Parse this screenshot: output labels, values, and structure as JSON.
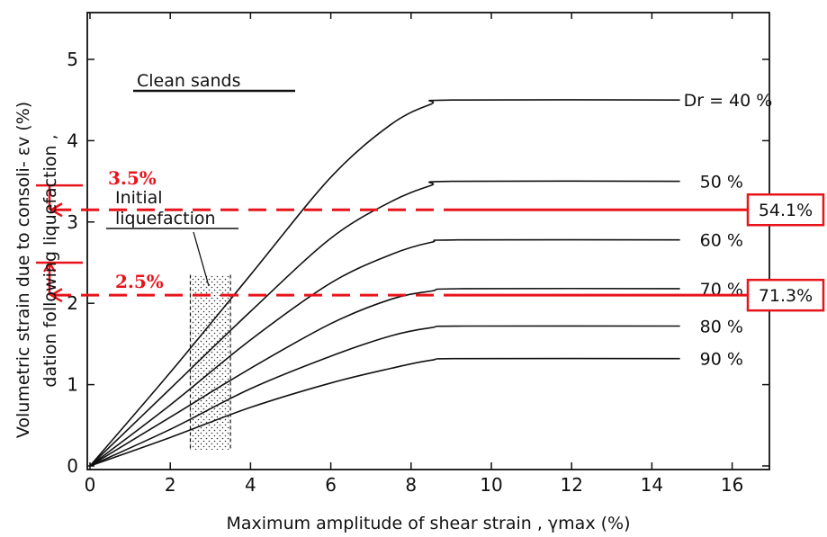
{
  "chart_data": {
    "type": "line",
    "title": "",
    "xlabel": "Maximum amplitude of shear strain , γmax (%)",
    "ylabel_line1": "Volumetric strain due to consoli-  εv (%)",
    "ylabel_line2": "dation following liquefaction ,",
    "xlim": [
      0,
      17
    ],
    "ylim": [
      0,
      5.6
    ],
    "xticks": [
      "0",
      "2",
      "4",
      "6",
      "8",
      "10",
      "12",
      "14",
      "16"
    ],
    "yticks": [
      "0",
      "1",
      "2",
      "3",
      "4",
      "5"
    ],
    "grid": false,
    "annotations": {
      "clean_sands": "Clean sands",
      "initial_line1": "Initial",
      "initial_line2": "liquefaction",
      "initial_range_x": [
        2.5,
        3.5
      ],
      "initial_range_y": [
        0.2,
        2.35
      ]
    },
    "series": [
      {
        "name": "Dr = 40 %",
        "x": [
          0,
          2,
          4,
          6,
          7.5,
          8.5,
          9,
          14.7
        ],
        "y": [
          0,
          1.15,
          2.35,
          3.55,
          4.2,
          4.45,
          4.5,
          4.5
        ]
      },
      {
        "name": "50 %",
        "x": [
          0,
          2,
          4,
          6,
          7.5,
          8.5,
          9,
          14.7
        ],
        "y": [
          0,
          0.95,
          1.9,
          2.8,
          3.25,
          3.45,
          3.5,
          3.5
        ]
      },
      {
        "name": "60 %",
        "x": [
          0,
          2,
          4,
          6,
          7.5,
          8.5,
          9.2,
          14.7
        ],
        "y": [
          0,
          0.75,
          1.55,
          2.25,
          2.6,
          2.75,
          2.78,
          2.78
        ]
      },
      {
        "name": "70 %",
        "x": [
          0,
          2,
          4,
          6,
          7.5,
          8.5,
          9.3,
          14.7
        ],
        "y": [
          0,
          0.6,
          1.2,
          1.75,
          2.05,
          2.15,
          2.18,
          2.18
        ]
      },
      {
        "name": "80 %",
        "x": [
          0,
          2,
          4,
          6,
          7.5,
          8.5,
          9.3,
          14.7
        ],
        "y": [
          0,
          0.45,
          0.95,
          1.35,
          1.6,
          1.7,
          1.72,
          1.72
        ]
      },
      {
        "name": "90 %",
        "x": [
          0,
          2,
          4,
          6,
          7.5,
          8.5,
          9.3,
          14.7
        ],
        "y": [
          0,
          0.35,
          0.72,
          1.02,
          1.2,
          1.3,
          1.32,
          1.32
        ]
      }
    ],
    "overlay": {
      "color": "#e8141b",
      "bracket_top": {
        "label": "3.5%",
        "y_from": 3.15,
        "y_to": 3.45
      },
      "bracket_bottom": {
        "label": "2.5%",
        "y_from": 2.1,
        "y_to": 2.5
      },
      "dashed_lines": [
        {
          "y": 3.15,
          "box_label": "54.1%"
        },
        {
          "y": 2.1,
          "box_label": "71.3%"
        }
      ]
    }
  }
}
